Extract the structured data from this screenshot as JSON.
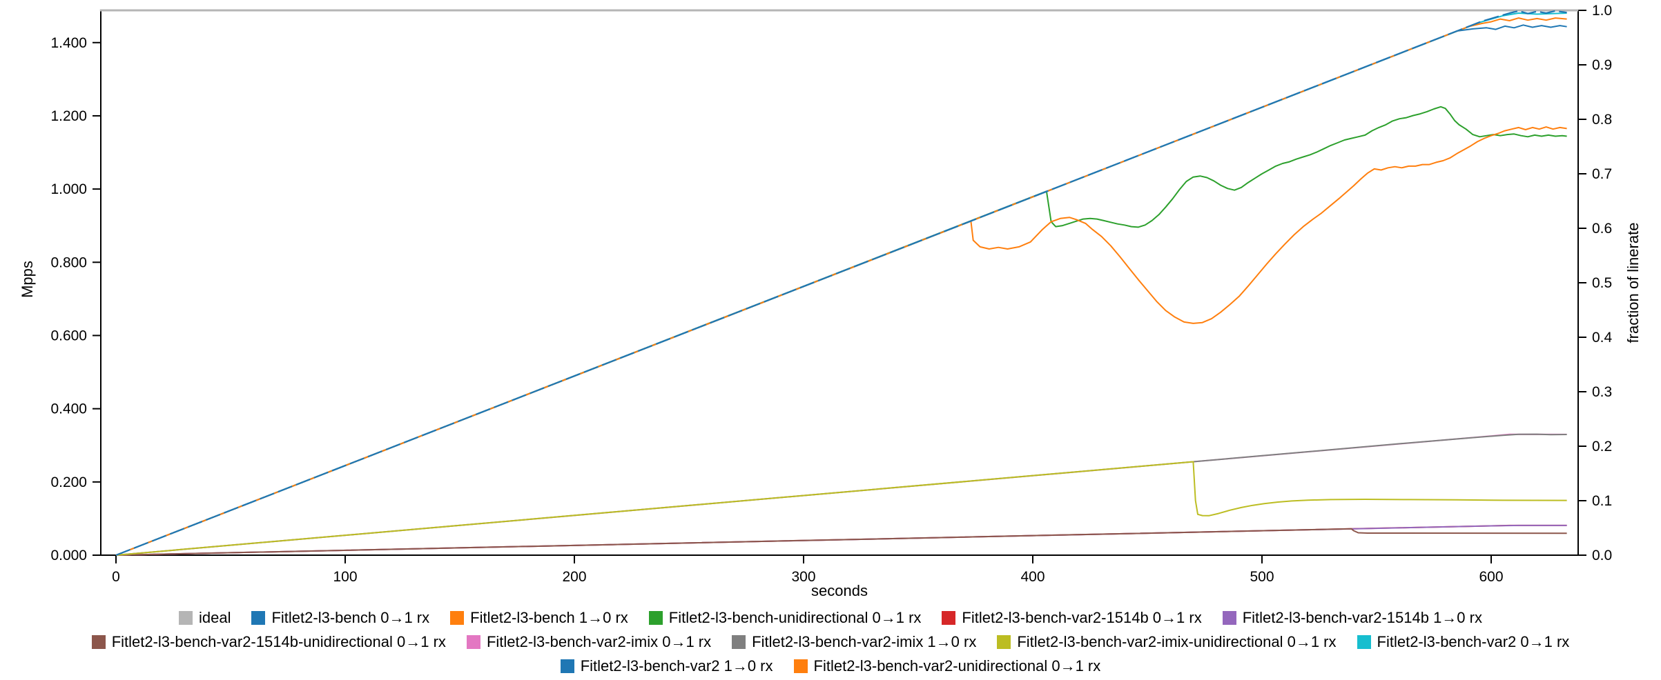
{
  "chart_data": {
    "type": "line",
    "title": "",
    "xlabel": "seconds",
    "ylabel_left": "Mpps",
    "ylabel_right": "fraction of linerate",
    "grid": false,
    "legend_position": "bottom",
    "x_range": [
      -7,
      638
    ],
    "x_ticks": [
      0,
      100,
      200,
      300,
      400,
      500,
      600
    ],
    "y_left_ticks": [
      {
        "mpps": 0.0,
        "label": "0.000"
      },
      {
        "mpps": 0.2,
        "label": "0.200"
      },
      {
        "mpps": 0.4,
        "label": "0.400"
      },
      {
        "mpps": 0.6,
        "label": "0.600"
      },
      {
        "mpps": 0.8,
        "label": "0.800"
      },
      {
        "mpps": 1.0,
        "label": "1.000"
      },
      {
        "mpps": 1.2,
        "label": "1.200"
      },
      {
        "mpps": 1.4,
        "label": "1.400"
      }
    ],
    "y_right_ticks": [
      {
        "f": 0.0,
        "label": "0.0"
      },
      {
        "f": 0.1,
        "label": "0.1"
      },
      {
        "f": 0.2,
        "label": "0.2"
      },
      {
        "f": 0.3,
        "label": "0.3"
      },
      {
        "f": 0.4,
        "label": "0.4"
      },
      {
        "f": 0.5,
        "label": "0.5"
      },
      {
        "f": 0.6,
        "label": "0.6"
      },
      {
        "f": 0.7,
        "label": "0.7"
      },
      {
        "f": 0.8,
        "label": "0.8"
      },
      {
        "f": 0.9,
        "label": "0.9"
      },
      {
        "f": 1.0,
        "label": "1.0"
      }
    ],
    "mpps_at_fraction_1": 1.4881,
    "y_right_range": [
      0,
      1
    ],
    "series": [
      {
        "name": "ideal",
        "color": "#b5b5b5",
        "width": 3,
        "points": [
          [
            -7,
            1.0
          ],
          [
            638,
            1.0
          ]
        ]
      },
      {
        "name": "Fitlet2-l3-bench-unidirectional 0→1 rx",
        "color": "#2ca02c",
        "width": 2,
        "points": [
          [
            0,
            0
          ],
          [
            406,
            0.668
          ],
          [
            408,
            0.612
          ],
          [
            410,
            0.603
          ],
          [
            413,
            0.605
          ],
          [
            416,
            0.609
          ],
          [
            419,
            0.613
          ],
          [
            422,
            0.617
          ],
          [
            425,
            0.618
          ],
          [
            428,
            0.617
          ],
          [
            431,
            0.614
          ],
          [
            434,
            0.611
          ],
          [
            437,
            0.608
          ],
          [
            440,
            0.606
          ],
          [
            443,
            0.603
          ],
          [
            446,
            0.602
          ],
          [
            449,
            0.606
          ],
          [
            452,
            0.614
          ],
          [
            455,
            0.625
          ],
          [
            458,
            0.639
          ],
          [
            461,
            0.654
          ],
          [
            464,
            0.671
          ],
          [
            467,
            0.686
          ],
          [
            470,
            0.694
          ],
          [
            473,
            0.696
          ],
          [
            476,
            0.693
          ],
          [
            479,
            0.687
          ],
          [
            482,
            0.679
          ],
          [
            485,
            0.673
          ],
          [
            488,
            0.67
          ],
          [
            491,
            0.675
          ],
          [
            494,
            0.684
          ],
          [
            497,
            0.692
          ],
          [
            500,
            0.7
          ],
          [
            503,
            0.707
          ],
          [
            506,
            0.714
          ],
          [
            509,
            0.719
          ],
          [
            512,
            0.722
          ],
          [
            515,
            0.727
          ],
          [
            518,
            0.731
          ],
          [
            521,
            0.735
          ],
          [
            524,
            0.74
          ],
          [
            527,
            0.746
          ],
          [
            530,
            0.752
          ],
          [
            533,
            0.757
          ],
          [
            536,
            0.762
          ],
          [
            539,
            0.765
          ],
          [
            542,
            0.768
          ],
          [
            545,
            0.771
          ],
          [
            548,
            0.779
          ],
          [
            551,
            0.785
          ],
          [
            554,
            0.79
          ],
          [
            557,
            0.797
          ],
          [
            560,
            0.801
          ],
          [
            563,
            0.803
          ],
          [
            566,
            0.807
          ],
          [
            569,
            0.81
          ],
          [
            572,
            0.814
          ],
          [
            575,
            0.819
          ],
          [
            578,
            0.823
          ],
          [
            580,
            0.82
          ],
          [
            582,
            0.81
          ],
          [
            584,
            0.798
          ],
          [
            586,
            0.79
          ],
          [
            589,
            0.782
          ],
          [
            592,
            0.772
          ],
          [
            595,
            0.768
          ],
          [
            598,
            0.77
          ],
          [
            601,
            0.772
          ],
          [
            604,
            0.77
          ],
          [
            607,
            0.772
          ],
          [
            610,
            0.773
          ],
          [
            613,
            0.77
          ],
          [
            616,
            0.768
          ],
          [
            619,
            0.771
          ],
          [
            622,
            0.769
          ],
          [
            625,
            0.771
          ],
          [
            628,
            0.769
          ],
          [
            631,
            0.77
          ],
          [
            633,
            0.769
          ]
        ]
      },
      {
        "name": "Fitlet2-l3-bench-var2-1514b 0→1 rx",
        "color": "#d62728",
        "width": 2,
        "points": [
          [
            0,
            0
          ],
          [
            608,
            0.0545
          ],
          [
            633,
            0.0545
          ]
        ]
      },
      {
        "name": "Fitlet2-l3-bench-var2-1514b 1→0 rx",
        "color": "#9467bd",
        "width": 2,
        "points": [
          [
            0,
            0
          ],
          [
            600,
            0.0538
          ],
          [
            612,
            0.0546
          ],
          [
            633,
            0.0545
          ]
        ]
      },
      {
        "name": "Fitlet2-l3-bench-var2-1514b-unidirectional 0→1 rx",
        "color": "#8c564b",
        "width": 2,
        "points": [
          [
            0,
            0
          ],
          [
            539,
            0.0483
          ],
          [
            540,
            0.045
          ],
          [
            542,
            0.0412
          ],
          [
            546,
            0.0405
          ],
          [
            633,
            0.0403
          ]
        ]
      },
      {
        "name": "Fitlet2-l3-bench-var2-imix 0→1 rx",
        "color": "#e377c2",
        "width": 2,
        "points": [
          [
            0,
            0
          ],
          [
            608,
            0.2218
          ],
          [
            633,
            0.2216
          ]
        ]
      },
      {
        "name": "Fitlet2-l3-bench-var2-imix 1→0 rx",
        "color": "#7f7f7f",
        "width": 2,
        "points": [
          [
            0,
            0
          ],
          [
            470,
            0.1715
          ],
          [
            500,
            0.1825
          ],
          [
            530,
            0.1935
          ],
          [
            560,
            0.2045
          ],
          [
            590,
            0.215
          ],
          [
            605,
            0.22
          ],
          [
            612,
            0.2218
          ],
          [
            620,
            0.222
          ],
          [
            626,
            0.2213
          ],
          [
            633,
            0.2215
          ]
        ]
      },
      {
        "name": "Fitlet2-l3-bench-var2-imix-unidirectional 0→1 rx",
        "color": "#bcbd22",
        "width": 2,
        "points": [
          [
            0,
            0
          ],
          [
            470,
            0.1715
          ],
          [
            471,
            0.1
          ],
          [
            472,
            0.075
          ],
          [
            474,
            0.0727
          ],
          [
            477,
            0.0725
          ],
          [
            481,
            0.0765
          ],
          [
            486,
            0.0825
          ],
          [
            491,
            0.0875
          ],
          [
            496,
            0.0915
          ],
          [
            501,
            0.0945
          ],
          [
            507,
            0.0975
          ],
          [
            513,
            0.0995
          ],
          [
            520,
            0.101
          ],
          [
            530,
            0.102
          ],
          [
            545,
            0.1025
          ],
          [
            565,
            0.102
          ],
          [
            585,
            0.1015
          ],
          [
            605,
            0.1008
          ],
          [
            633,
            0.1005
          ]
        ]
      },
      {
        "name": "Fitlet2-l3-bench 1→0 rx",
        "color": "#ff7f0e",
        "width": 2,
        "points": [
          [
            0,
            0
          ],
          [
            373,
            0.613
          ],
          [
            374,
            0.578
          ],
          [
            377,
            0.566
          ],
          [
            381,
            0.562
          ],
          [
            385,
            0.565
          ],
          [
            389,
            0.562
          ],
          [
            394,
            0.566
          ],
          [
            399,
            0.575
          ],
          [
            404,
            0.597
          ],
          [
            408,
            0.612
          ],
          [
            412,
            0.618
          ],
          [
            416,
            0.62
          ],
          [
            419,
            0.616
          ],
          [
            423,
            0.609
          ],
          [
            426,
            0.598
          ],
          [
            430,
            0.585
          ],
          [
            434,
            0.568
          ],
          [
            438,
            0.548
          ],
          [
            442,
            0.527
          ],
          [
            446,
            0.506
          ],
          [
            450,
            0.486
          ],
          [
            454,
            0.466
          ],
          [
            458,
            0.449
          ],
          [
            462,
            0.437
          ],
          [
            466,
            0.428
          ],
          [
            470,
            0.4255
          ],
          [
            474,
            0.427
          ],
          [
            478,
            0.434
          ],
          [
            482,
            0.446
          ],
          [
            486,
            0.46
          ],
          [
            490,
            0.475
          ],
          [
            494,
            0.494
          ],
          [
            498,
            0.514
          ],
          [
            502,
            0.534
          ],
          [
            506,
            0.553
          ],
          [
            510,
            0.571
          ],
          [
            514,
            0.588
          ],
          [
            518,
            0.603
          ],
          [
            522,
            0.616
          ],
          [
            526,
            0.628
          ],
          [
            530,
            0.642
          ],
          [
            534,
            0.656
          ],
          [
            537,
            0.667
          ],
          [
            540,
            0.678
          ],
          [
            543,
            0.69
          ],
          [
            546,
            0.701
          ],
          [
            549,
            0.709
          ],
          [
            552,
            0.707
          ],
          [
            555,
            0.711
          ],
          [
            558,
            0.713
          ],
          [
            561,
            0.711
          ],
          [
            564,
            0.714
          ],
          [
            567,
            0.714
          ],
          [
            570,
            0.717
          ],
          [
            573,
            0.717
          ],
          [
            576,
            0.721
          ],
          [
            579,
            0.724
          ],
          [
            582,
            0.729
          ],
          [
            585,
            0.737
          ],
          [
            588,
            0.744
          ],
          [
            591,
            0.751
          ],
          [
            594,
            0.759
          ],
          [
            597,
            0.765
          ],
          [
            600,
            0.77
          ],
          [
            603,
            0.774
          ],
          [
            606,
            0.779
          ],
          [
            609,
            0.782
          ],
          [
            612,
            0.785
          ],
          [
            615,
            0.781
          ],
          [
            618,
            0.785
          ],
          [
            621,
            0.782
          ],
          [
            624,
            0.786
          ],
          [
            627,
            0.782
          ],
          [
            630,
            0.785
          ],
          [
            633,
            0.783
          ]
        ]
      },
      {
        "name": "Fitlet2-l3-bench-var2 0→1 rx",
        "color": "#17becf",
        "width": 2,
        "points": [
          [
            0,
            0
          ],
          [
            595,
            0.978
          ],
          [
            605,
            0.99
          ],
          [
            612,
            0.995
          ],
          [
            620,
            0.993
          ],
          [
            633,
            0.995
          ]
        ]
      },
      {
        "name": "Fitlet2-l3-bench-var2 1→0 rx",
        "color": "#1f77b4",
        "width": 2,
        "points": [
          [
            0,
            0
          ],
          [
            585,
            0.962
          ],
          [
            592,
            0.966
          ],
          [
            598,
            0.968
          ],
          [
            602,
            0.965
          ],
          [
            606,
            0.971
          ],
          [
            610,
            0.968
          ],
          [
            614,
            0.973
          ],
          [
            618,
            0.969
          ],
          [
            622,
            0.972
          ],
          [
            626,
            0.969
          ],
          [
            630,
            0.972
          ],
          [
            633,
            0.97
          ]
        ]
      },
      {
        "name": "Fitlet2-l3-bench-var2-unidirectional 0→1 rx",
        "color": "#ff7f0e",
        "width": 2,
        "points": [
          [
            0,
            0
          ],
          [
            590,
            0.97
          ],
          [
            596,
            0.976
          ],
          [
            600,
            0.979
          ],
          [
            604,
            0.984
          ],
          [
            608,
            0.981
          ],
          [
            612,
            0.986
          ],
          [
            616,
            0.982
          ],
          [
            620,
            0.985
          ],
          [
            624,
            0.982
          ],
          [
            628,
            0.986
          ],
          [
            633,
            0.984
          ]
        ]
      },
      {
        "name": "Fitlet2-l3-bench 0→1 rx",
        "color": "#1f77b4",
        "width": 2.2,
        "dash": "22 6",
        "points": [
          [
            0,
            0
          ],
          [
            596,
            0.98
          ],
          [
            600,
            0.985
          ],
          [
            604,
            0.99
          ],
          [
            608,
            0.995
          ],
          [
            612,
            0.999
          ],
          [
            616,
            0.994
          ],
          [
            620,
            0.998
          ],
          [
            624,
            0.995
          ],
          [
            628,
            0.999
          ],
          [
            633,
            0.996
          ]
        ]
      }
    ]
  },
  "axis_labels": {
    "x": "seconds",
    "y_left": "Mpps",
    "y_right": "fraction of linerate"
  },
  "legend": {
    "rows": [
      [
        {
          "label": "ideal",
          "color": "#b5b5b5"
        },
        {
          "label": "Fitlet2-l3-bench 0→1 rx",
          "color": "#1f77b4"
        },
        {
          "label": "Fitlet2-l3-bench 1→0 rx",
          "color": "#ff7f0e"
        },
        {
          "label": "Fitlet2-l3-bench-unidirectional 0→1 rx",
          "color": "#2ca02c"
        },
        {
          "label": "Fitlet2-l3-bench-var2-1514b 0→1 rx",
          "color": "#d62728"
        },
        {
          "label": "Fitlet2-l3-bench-var2-1514b 1→0 rx",
          "color": "#9467bd"
        }
      ],
      [
        {
          "label": "Fitlet2-l3-bench-var2-1514b-unidirectional 0→1 rx",
          "color": "#8c564b"
        },
        {
          "label": "Fitlet2-l3-bench-var2-imix 0→1 rx",
          "color": "#e377c2"
        },
        {
          "label": "Fitlet2-l3-bench-var2-imix 1→0 rx",
          "color": "#7f7f7f"
        },
        {
          "label": "Fitlet2-l3-bench-var2-imix-unidirectional 0→1 rx",
          "color": "#bcbd22"
        },
        {
          "label": "Fitlet2-l3-bench-var2 0→1 rx",
          "color": "#17becf"
        }
      ],
      [
        {
          "label": "Fitlet2-l3-bench-var2 1→0 rx",
          "color": "#1f77b4"
        },
        {
          "label": "Fitlet2-l3-bench-var2-unidirectional 0→1 rx",
          "color": "#ff7f0e"
        }
      ]
    ]
  }
}
